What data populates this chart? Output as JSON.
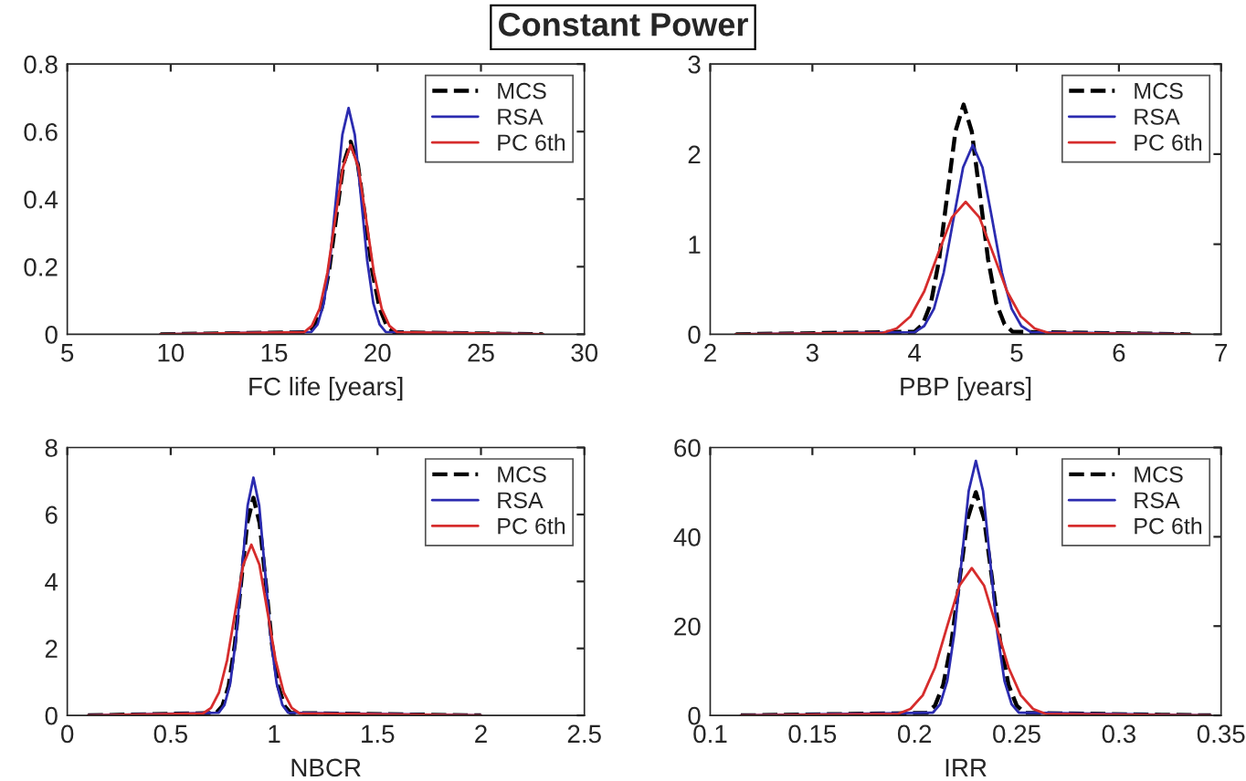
{
  "chart_data": [
    {
      "type": "line",
      "title": "Constant Power",
      "xlabel": "FC life [years]",
      "xlim": [
        5,
        30
      ],
      "xticks": [
        5,
        10,
        15,
        20,
        25,
        30
      ],
      "ylim": [
        0,
        0.8
      ],
      "yticks": [
        0,
        0.2,
        0.4,
        0.6,
        0.8
      ],
      "legend": "top right",
      "grid": false,
      "series": [
        {
          "name": "MCS",
          "color": "#000000",
          "line_style": "dashed",
          "x": [
            9.5,
            16.6,
            16.95,
            17.3,
            17.65,
            18.0,
            18.35,
            18.7,
            19.05,
            19.4,
            19.75,
            20.1,
            20.45,
            20.8,
            28
          ],
          "values": [
            0,
            0.006,
            0.025,
            0.077,
            0.185,
            0.346,
            0.503,
            0.57,
            0.503,
            0.346,
            0.185,
            0.077,
            0.025,
            0.006,
            0
          ]
        },
        {
          "name": "RSA",
          "color": "#2b2bb0",
          "line_style": "solid",
          "x": [
            9.5,
            16.8,
            17.1,
            17.4,
            17.7,
            18.0,
            18.3,
            18.6,
            18.9,
            19.2,
            19.5,
            19.8,
            20.1,
            20.4,
            28
          ],
          "values": [
            0,
            0.007,
            0.029,
            0.091,
            0.218,
            0.406,
            0.591,
            0.67,
            0.591,
            0.406,
            0.218,
            0.091,
            0.029,
            0.007,
            0
          ]
        },
        {
          "name": "PC 6th",
          "color": "#d62c2c",
          "line_style": "solid",
          "x": [
            9.5,
            16.45,
            16.825,
            17.2,
            17.575,
            17.95,
            18.325,
            18.7,
            19.075,
            19.45,
            19.825,
            20.2,
            20.575,
            20.95,
            28
          ],
          "values": [
            0,
            0.006,
            0.025,
            0.076,
            0.182,
            0.34,
            0.494,
            0.56,
            0.494,
            0.34,
            0.182,
            0.076,
            0.025,
            0.006,
            0
          ]
        }
      ]
    },
    {
      "type": "line",
      "xlabel": "PBP [years]",
      "xlim": [
        2,
        7
      ],
      "xticks": [
        2,
        3,
        4,
        5,
        6,
        7
      ],
      "ylim": [
        0,
        3
      ],
      "yticks": [
        0,
        1,
        2,
        3
      ],
      "legend": "top right",
      "grid": false,
      "series": [
        {
          "name": "MCS",
          "color": "#000000",
          "line_style": "dashed",
          "x": [
            2.25,
            4.0,
            4.08,
            4.16,
            4.24,
            4.32,
            4.4,
            4.48,
            4.56,
            4.64,
            4.72,
            4.8,
            4.88,
            4.96,
            6.7
          ],
          "values": [
            0,
            0.028,
            0.112,
            0.345,
            0.828,
            1.547,
            2.25,
            2.55,
            2.25,
            1.547,
            0.828,
            0.345,
            0.112,
            0.028,
            0
          ]
        },
        {
          "name": "RSA",
          "color": "#2b2bb0",
          "line_style": "solid",
          "x": [
            2.25,
            4.0,
            4.095,
            4.19,
            4.285,
            4.38,
            4.475,
            4.57,
            4.665,
            4.76,
            4.855,
            4.95,
            5.045,
            5.14,
            6.7
          ],
          "values": [
            0,
            0.023,
            0.092,
            0.284,
            0.682,
            1.274,
            1.853,
            2.1,
            1.853,
            1.274,
            0.682,
            0.284,
            0.092,
            0.023,
            0
          ]
        },
        {
          "name": "PC 6th",
          "color": "#d62c2c",
          "line_style": "solid",
          "x": [
            2.25,
            3.69,
            3.825,
            3.96,
            4.095,
            4.23,
            4.365,
            4.5,
            4.635,
            4.77,
            4.905,
            5.04,
            5.175,
            5.31,
            6.7
          ],
          "values": [
            0,
            0.016,
            0.065,
            0.199,
            0.477,
            0.892,
            1.297,
            1.47,
            1.297,
            0.892,
            0.477,
            0.199,
            0.065,
            0.016,
            0
          ]
        }
      ]
    },
    {
      "type": "line",
      "xlabel": "NBCR",
      "xlim": [
        0,
        2.5
      ],
      "xticks": [
        0,
        0.5,
        1,
        1.5,
        2,
        2.5
      ],
      "ylim": [
        0,
        8
      ],
      "yticks": [
        0,
        2,
        4,
        6,
        8
      ],
      "legend": "top right",
      "grid": false,
      "series": [
        {
          "name": "MCS",
          "color": "#000000",
          "line_style": "dashed",
          "x": [
            0.1,
            0.72,
            0.75,
            0.78,
            0.81,
            0.84,
            0.87,
            0.9,
            0.93,
            0.96,
            0.99,
            1.02,
            1.05,
            1.08,
            2.0
          ],
          "values": [
            0,
            0.072,
            0.285,
            0.879,
            2.111,
            3.942,
            5.736,
            6.5,
            5.736,
            3.942,
            2.111,
            0.879,
            0.285,
            0.072,
            0
          ]
        },
        {
          "name": "RSA",
          "color": "#2b2bb0",
          "line_style": "solid",
          "x": [
            0.1,
            0.732,
            0.76,
            0.788,
            0.816,
            0.844,
            0.872,
            0.9,
            0.928,
            0.956,
            0.984,
            1.012,
            1.04,
            1.068,
            2.0
          ],
          "values": [
            0,
            0.079,
            0.312,
            0.961,
            2.305,
            4.306,
            6.266,
            7.1,
            6.266,
            4.306,
            2.305,
            0.961,
            0.312,
            0.079,
            0
          ]
        },
        {
          "name": "PC 6th",
          "color": "#d62c2c",
          "line_style": "solid",
          "x": [
            0.1,
            0.656,
            0.695,
            0.734,
            0.773,
            0.812,
            0.851,
            0.89,
            0.929,
            0.968,
            1.007,
            1.046,
            1.085,
            1.124,
            2.0
          ],
          "values": [
            0,
            0.057,
            0.224,
            0.69,
            1.656,
            3.093,
            4.501,
            5.1,
            4.501,
            3.093,
            1.656,
            0.69,
            0.224,
            0.057,
            0
          ]
        }
      ]
    },
    {
      "type": "line",
      "xlabel": "IRR",
      "xlim": [
        0.1,
        0.35
      ],
      "xticks": [
        0.1,
        0.15,
        0.2,
        0.25,
        0.3,
        0.35
      ],
      "ylim": [
        0,
        60
      ],
      "yticks": [
        0,
        20,
        40,
        60
      ],
      "legend": "top right",
      "grid": false,
      "series": [
        {
          "name": "MCS",
          "color": "#000000",
          "line_style": "dashed",
          "x": [
            0.115,
            0.206,
            0.21,
            0.214,
            0.218,
            0.222,
            0.226,
            0.23,
            0.234,
            0.238,
            0.242,
            0.246,
            0.25,
            0.254,
            0.345
          ],
          "values": [
            0,
            0.56,
            2.2,
            6.8,
            16.2,
            30.3,
            44.1,
            50,
            44.1,
            30.3,
            16.2,
            6.8,
            2.2,
            0.56,
            0
          ]
        },
        {
          "name": "RSA",
          "color": "#2b2bb0",
          "line_style": "solid",
          "x": [
            0.115,
            0.209,
            0.2125,
            0.216,
            0.2195,
            0.223,
            0.2265,
            0.23,
            0.2335,
            0.237,
            0.2405,
            0.244,
            0.2475,
            0.251,
            0.345
          ],
          "values": [
            0,
            0.63,
            2.5,
            7.7,
            18.5,
            34.6,
            50.3,
            57,
            50.3,
            34.6,
            18.5,
            7.7,
            2.5,
            0.63,
            0
          ]
        },
        {
          "name": "PC 6th",
          "color": "#d62c2c",
          "line_style": "solid",
          "x": [
            0.115,
            0.192,
            0.198,
            0.204,
            0.21,
            0.216,
            0.222,
            0.228,
            0.234,
            0.24,
            0.246,
            0.252,
            0.258,
            0.264,
            0.345
          ],
          "values": [
            0,
            0.37,
            1.45,
            4.5,
            10.7,
            20,
            29.1,
            33,
            29.1,
            20,
            10.7,
            4.5,
            1.45,
            0.37,
            0
          ]
        }
      ]
    }
  ]
}
